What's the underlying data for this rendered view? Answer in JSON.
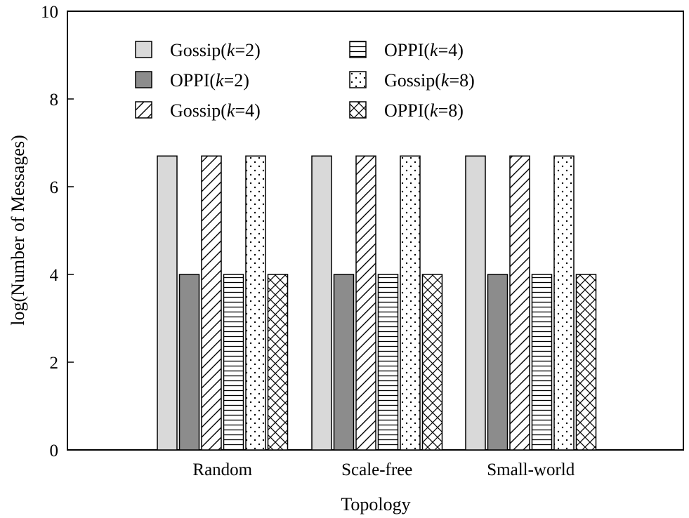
{
  "chart_data": {
    "type": "bar",
    "title": "",
    "xlabel": "Topology",
    "ylabel": "log(Number of Messages)",
    "ylim": [
      0,
      10
    ],
    "yticks": [
      0,
      2,
      4,
      6,
      8,
      10
    ],
    "categories": [
      "Random",
      "Scale-free",
      "Small-world"
    ],
    "series": [
      {
        "name": "Gossip(k=2)",
        "prefix": "Gossip(",
        "k": "k",
        "suffix": "=2)",
        "pattern": "solid-light",
        "color": "#d9d9d9",
        "values": [
          6.7,
          6.7,
          6.7
        ]
      },
      {
        "name": "OPPI(k=2)",
        "prefix": "OPPI(",
        "k": "k",
        "suffix": "=2)",
        "pattern": "solid-dark",
        "color": "#8c8c8c",
        "values": [
          4.0,
          4.0,
          4.0
        ]
      },
      {
        "name": "Gossip(k=4)",
        "prefix": "Gossip(",
        "k": "k",
        "suffix": "=4)",
        "pattern": "diagonal",
        "color": "#ffffff",
        "values": [
          6.7,
          6.7,
          6.7
        ]
      },
      {
        "name": "OPPI(k=4)",
        "prefix": "OPPI(",
        "k": "k",
        "suffix": "=4)",
        "pattern": "horizontal",
        "color": "#ffffff",
        "values": [
          4.0,
          4.0,
          4.0
        ]
      },
      {
        "name": "Gossip(k=8)",
        "prefix": "Gossip(",
        "k": "k",
        "suffix": "=8)",
        "pattern": "dots",
        "color": "#ffffff",
        "values": [
          6.7,
          6.7,
          6.7
        ]
      },
      {
        "name": "OPPI(k=8)",
        "prefix": "OPPI(",
        "k": "k",
        "suffix": "=8)",
        "pattern": "crosshatch",
        "color": "#ffffff",
        "values": [
          4.0,
          4.0,
          4.0
        ]
      }
    ],
    "legend": {
      "placement": "top-left",
      "columns": 2
    },
    "grid": false
  }
}
